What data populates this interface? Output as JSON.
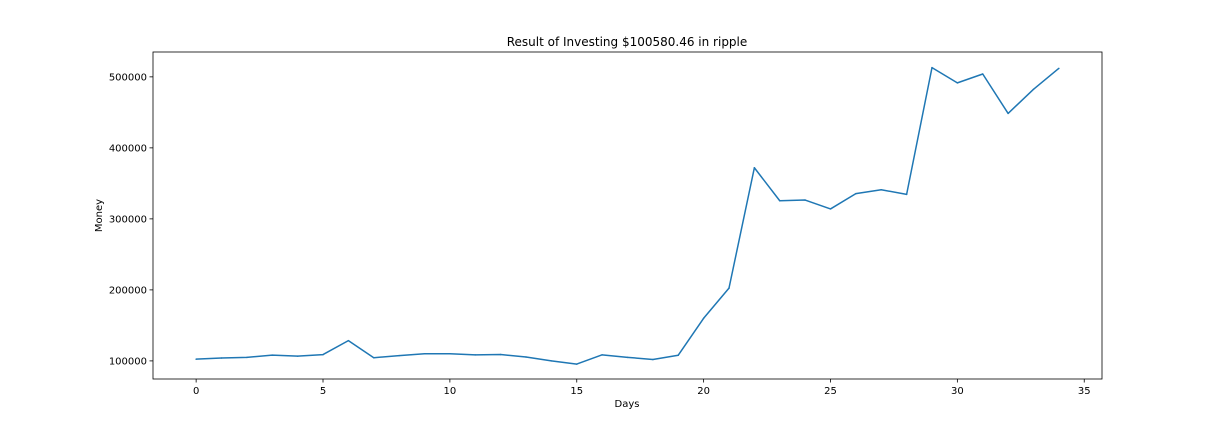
{
  "chart_data": {
    "type": "line",
    "title": "Result of Investing $100580.46 in ripple",
    "xlabel": "Days",
    "ylabel": "Money",
    "xlim": [
      -1.7,
      35.7
    ],
    "ylim": [
      74500,
      535000
    ],
    "xticks": [
      0,
      5,
      10,
      15,
      20,
      25,
      30,
      35
    ],
    "yticks": [
      100000,
      200000,
      300000,
      400000,
      500000
    ],
    "grid": false,
    "line_color": "#1f77b4",
    "x": [
      0,
      1,
      2,
      3,
      4,
      5,
      6,
      7,
      8,
      9,
      10,
      11,
      12,
      13,
      14,
      15,
      16,
      17,
      18,
      19,
      20,
      21,
      22,
      23,
      24,
      25,
      26,
      27,
      28,
      29,
      30,
      31,
      32,
      33,
      34
    ],
    "y": [
      102500,
      104000,
      105000,
      108200,
      106800,
      108900,
      128500,
      104500,
      107500,
      110000,
      110000,
      108500,
      109000,
      105500,
      100000,
      95500,
      108500,
      105000,
      102000,
      108000,
      160000,
      202500,
      372000,
      325500,
      326500,
      314000,
      335500,
      341000,
      334500,
      513000,
      491500,
      504000,
      448500,
      482500,
      512000
    ]
  }
}
